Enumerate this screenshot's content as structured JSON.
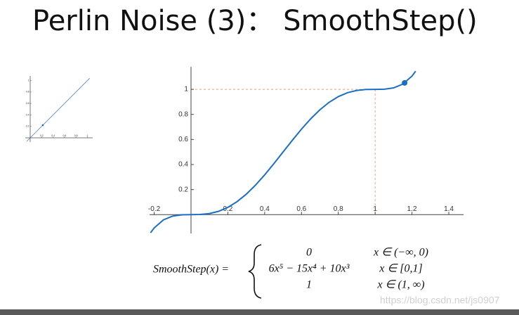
{
  "title": "Perlin Noise (3)： SmoothStep()",
  "chart_data": [
    {
      "type": "line",
      "x": [
        -0.22,
        -0.2,
        -0.15,
        -0.1,
        -0.05,
        0,
        0.05,
        0.1,
        0.15,
        0.2,
        0.25,
        0.3,
        0.35,
        0.4,
        0.45,
        0.5,
        0.55,
        0.6,
        0.65,
        0.7,
        0.75,
        0.8,
        0.85,
        0.9,
        0.95,
        1,
        1.05,
        1.1,
        1.15,
        1.2,
        1.22
      ],
      "series": [
        {
          "color": "#1a6fc4",
          "values": [
            -0.1447,
            -0.1059,
            -0.0418,
            -0.0116,
            -0.0013,
            0,
            0.0012,
            0.0086,
            0.0266,
            0.0579,
            0.1035,
            0.1631,
            0.2352,
            0.3174,
            0.4069,
            0.5,
            0.5931,
            0.6826,
            0.7648,
            0.8369,
            0.8965,
            0.9421,
            0.9734,
            0.9914,
            0.9988,
            1,
            1.0013,
            1.0116,
            1.0418,
            1.1059,
            1.1447
          ]
        }
      ],
      "marker": {
        "x": 1.16,
        "y": 1.0514,
        "color": "#1a6fc4"
      },
      "guide": {
        "x": 1,
        "y": 1,
        "color": "#e8a070"
      },
      "xlim": [
        -0.225,
        1.48
      ],
      "ylim": [
        -0.15,
        1.18
      ],
      "xticks": [
        -0.2,
        0.2,
        0.4,
        0.6,
        0.8,
        1,
        1.2,
        1.4
      ],
      "yticks": [
        0.2,
        0.4,
        0.6,
        0.8,
        1
      ]
    },
    {
      "type": "line",
      "x": [
        -0.06,
        1.04
      ],
      "series": [
        {
          "color": "#4a7fc0",
          "values": [
            -0.06,
            1.04
          ]
        }
      ],
      "marker": {
        "x": 0.22,
        "y": 0.22,
        "color": "#1a5fb0"
      },
      "xlim": [
        -0.086,
        1.092
      ],
      "ylim": [
        -0.074,
        1.08
      ],
      "xticks": [
        0.2,
        0.4,
        0.6,
        0.8,
        1
      ],
      "yticks": [
        0.2,
        0.4,
        0.6,
        0.8,
        1
      ]
    }
  ],
  "formula": {
    "lhs": "SmoothStep(x) =",
    "cases": [
      {
        "expr": "0",
        "cond": "x ∈ (−∞, 0)"
      },
      {
        "expr": "6x⁵ − 15x⁴ + 10x³",
        "cond": "x ∈ [0,1]"
      },
      {
        "expr": "1",
        "cond": "x ∈ (1, ∞)"
      }
    ]
  },
  "watermark": "https://blog.csdn.net/js0907"
}
